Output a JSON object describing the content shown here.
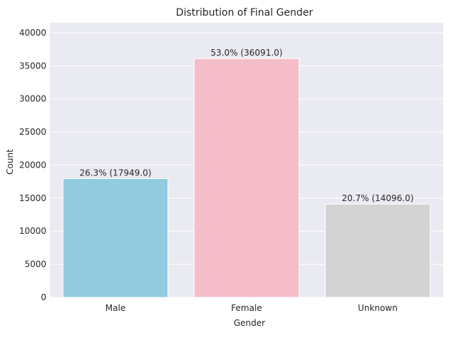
{
  "chart_data": {
    "type": "bar",
    "title": "Distribution of Final Gender",
    "xlabel": "Gender",
    "ylabel": "Count",
    "categories": [
      "Male",
      "Female",
      "Unknown"
    ],
    "values": [
      17949,
      36091,
      14096
    ],
    "data_labels": [
      "26.3% (17949.0)",
      "53.0% (36091.0)",
      "20.7% (14096.0)"
    ],
    "colors": [
      "#92CAE0",
      "#F5BDC8",
      "#D3D3D3"
    ],
    "ylim": [
      0,
      41500
    ],
    "yticks": [
      0,
      5000,
      10000,
      15000,
      20000,
      25000,
      30000,
      35000,
      40000
    ],
    "ytick_labels": [
      "0",
      "5000",
      "10000",
      "15000",
      "20000",
      "25000",
      "30000",
      "35000",
      "40000"
    ],
    "grid": true,
    "background": "#EAEAF2",
    "gridline_color": "#FFFFFF"
  }
}
